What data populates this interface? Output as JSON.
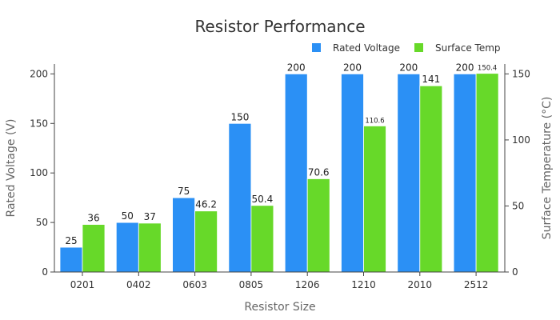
{
  "chart_data": {
    "type": "bar",
    "title": "Resistor Performance",
    "xlabel": "Resistor Size",
    "ylabel": "Rated Voltage (V)",
    "y2label": "Surface Temperature (°C)",
    "categories": [
      "0201",
      "0402",
      "0603",
      "0805",
      "1206",
      "1210",
      "2010",
      "2512"
    ],
    "series": [
      {
        "name": "Rated Voltage",
        "axis": "left",
        "color": "#2b90f5",
        "values": [
          25,
          50,
          75,
          150,
          200,
          200,
          200,
          200
        ],
        "labels": [
          "25",
          "50",
          "75",
          "150",
          "200",
          "200",
          "200",
          "200"
        ]
      },
      {
        "name": "Surface Temp",
        "axis": "right",
        "color": "#67d929",
        "values": [
          36,
          37,
          46.2,
          50.4,
          70.6,
          110.6,
          141,
          150.4
        ],
        "labels": [
          "36",
          "37",
          "46.2",
          "50.4",
          "70.6",
          "110.6",
          "141",
          "150.4"
        ]
      }
    ],
    "y_axis": {
      "ylim": [
        0,
        210
      ],
      "ticks": [
        0,
        50,
        100,
        150,
        200
      ],
      "tick_labels": [
        "0",
        "50",
        "100",
        "150",
        "200"
      ]
    },
    "y2_axis": {
      "ylim": [
        0,
        157.5
      ],
      "ticks": [
        0,
        50,
        100,
        150
      ],
      "tick_labels": [
        "0",
        "50",
        "100",
        "150"
      ]
    },
    "legend": {
      "placement": "top-right"
    },
    "grid": false
  }
}
